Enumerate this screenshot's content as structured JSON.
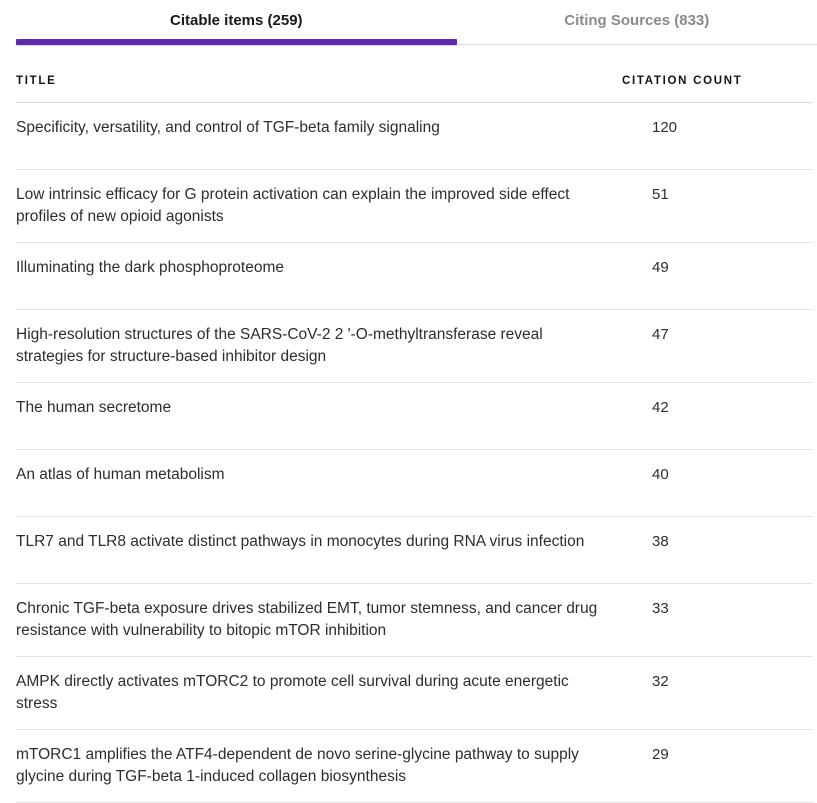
{
  "tabs": [
    {
      "label": "Citable items (259)",
      "active": true
    },
    {
      "label": "Citing Sources (833)",
      "active": false
    }
  ],
  "table": {
    "columns": [
      "TITLE",
      "CITATION COUNT"
    ],
    "rows": [
      {
        "title": "Specificity, versatility, and control of TGF-beta family signaling",
        "count": 120
      },
      {
        "title": "Low intrinsic efficacy for G protein activation can explain the improved side effect profiles of new opioid agonists",
        "count": 51
      },
      {
        "title": "Illuminating the dark phosphoproteome",
        "count": 49
      },
      {
        "title": "High-resolution structures of the SARS-CoV-2 2 '-O-methyltransferase reveal strategies for structure-based inhibitor design",
        "count": 47
      },
      {
        "title": "The human secretome",
        "count": 42
      },
      {
        "title": "An atlas of human metabolism",
        "count": 40
      },
      {
        "title": "TLR7 and TLR8 activate distinct pathways in monocytes during RNA virus infection",
        "count": 38
      },
      {
        "title": "Chronic TGF-beta exposure drives stabilized EMT, tumor stemness, and cancer drug resistance with vulnerability to bitopic mTOR inhibition",
        "count": 33
      },
      {
        "title": "AMPK directly activates mTORC2 to promote cell survival during acute energetic stress",
        "count": 32
      },
      {
        "title": "mTORC1 amplifies the ATF4-dependent de novo serine-glycine pathway to supply glycine during TGF-beta 1-induced collagen biosynthesis",
        "count": 29
      }
    ]
  },
  "colors": {
    "accent_purple": "#5c2da2",
    "inactive_tab_gray": "#8a8a8a",
    "row_border": "#e3e3e3"
  }
}
